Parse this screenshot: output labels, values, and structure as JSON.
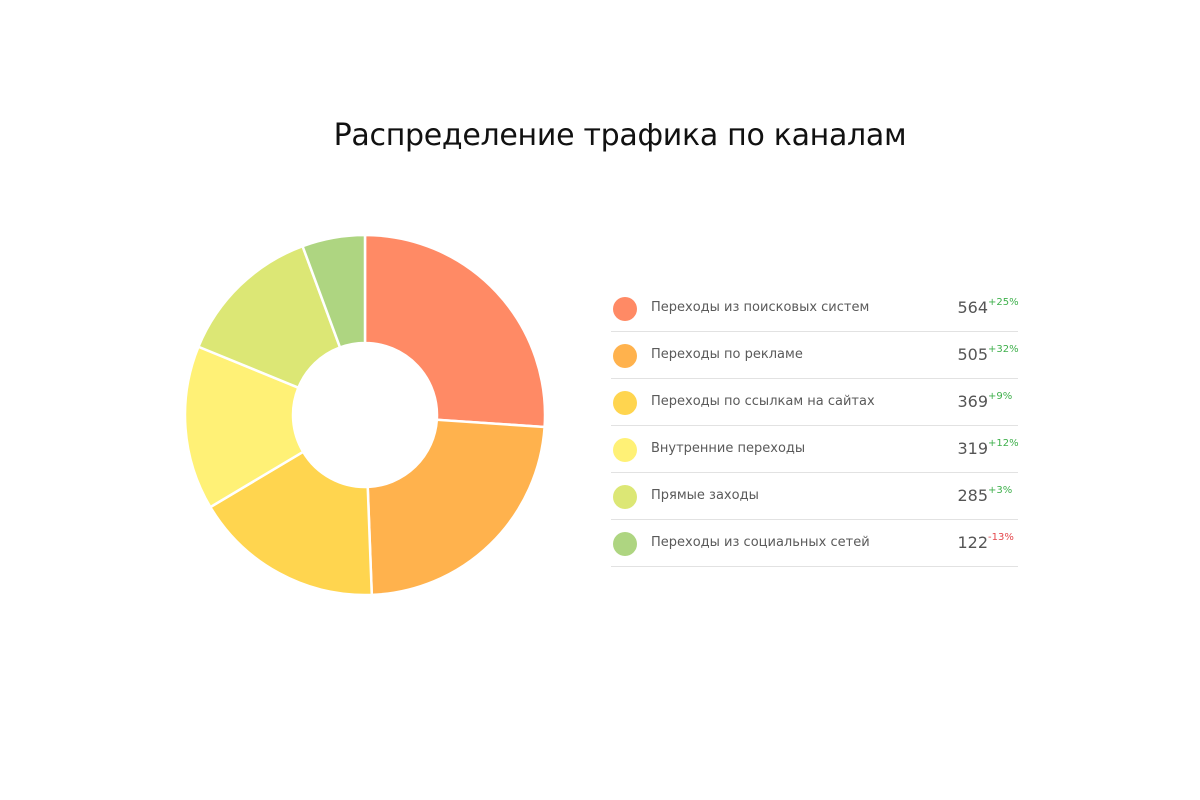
{
  "chart_data": {
    "type": "pie",
    "variant": "donut",
    "title": "Распределение трафика по каналам",
    "series": [
      {
        "label": "Переходы из поисковых систем",
        "value": 564,
        "change": "+25%",
        "color": "#ff8a65"
      },
      {
        "label": "Переходы по рекламе",
        "value": 505,
        "change": "+32%",
        "color": "#ffb24d"
      },
      {
        "label": "Переходы по ссылкам на сайтах",
        "value": 369,
        "change": "+9%",
        "color": "#ffd54f"
      },
      {
        "label": "Внутренние переходы",
        "value": 319,
        "change": "+12%",
        "color": "#fff176"
      },
      {
        "label": "Прямые заходы",
        "value": 285,
        "change": "+3%",
        "color": "#dce775"
      },
      {
        "label": "Переходы из социальных сетей",
        "value": 122,
        "change": "-13%",
        "color": "#aed581"
      }
    ],
    "legend_position": "right"
  }
}
